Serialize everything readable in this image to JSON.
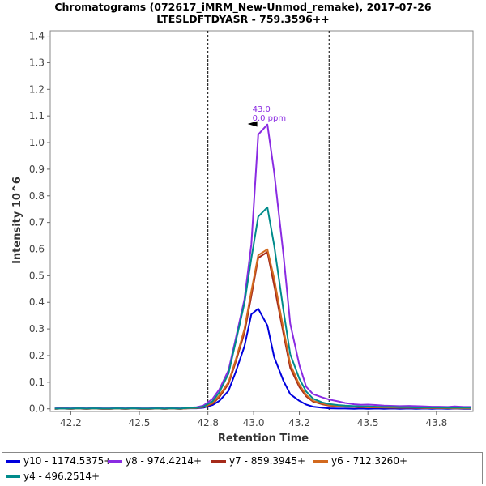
{
  "chart_data": {
    "type": "line",
    "title": "Chromatograms (072617_iMRM_New-Unmod_remake), 2017-07-26",
    "subtitle": "LTESLDFTDYASR - 759.3596++",
    "xlabel": "Retention Time",
    "ylabel": "Intensity 10^6",
    "xlim": [
      42.11,
      43.96
    ],
    "ylim": [
      -0.01,
      1.42
    ],
    "x_ticks": [
      42.2,
      42.5,
      42.8,
      43.0,
      43.2,
      43.5,
      43.8
    ],
    "x_tick_labels": [
      "42.2",
      "42.5",
      "42.8",
      "43.0",
      "43.2",
      "43.5",
      "43.8"
    ],
    "y_ticks": [
      0.0,
      0.1,
      0.2,
      0.3,
      0.4,
      0.5,
      0.6,
      0.7,
      0.8,
      0.9,
      1.0,
      1.1,
      1.2,
      1.3,
      1.4
    ],
    "y_tick_labels": [
      "0.0",
      "0.1",
      "0.2",
      "0.3",
      "0.4",
      "0.5",
      "0.6",
      "0.7",
      "0.8",
      "0.9",
      "1.0",
      "1.1",
      "1.2",
      "1.3",
      "1.4"
    ],
    "integration_boundaries": [
      42.8,
      43.33
    ],
    "x": [
      42.13,
      42.16,
      42.2,
      42.23,
      42.27,
      42.3,
      42.34,
      42.37,
      42.4,
      42.44,
      42.47,
      42.51,
      42.54,
      42.58,
      42.61,
      42.64,
      42.68,
      42.71,
      42.75,
      42.78,
      42.82,
      42.85,
      42.89,
      42.92,
      42.96,
      42.99,
      43.02,
      43.06,
      43.09,
      43.13,
      43.16,
      43.2,
      43.23,
      43.26,
      43.3,
      43.33,
      43.37,
      43.4,
      43.44,
      43.47,
      43.5,
      43.54,
      43.57,
      43.61,
      43.64,
      43.68,
      43.71,
      43.75,
      43.78,
      43.81,
      43.85,
      43.88,
      43.92,
      43.95
    ],
    "series": [
      {
        "name": "y10 - 1174.5375+",
        "color": "#0000dd",
        "values": [
          0.0,
          0.001,
          0.0,
          0.001,
          0.0,
          0.001,
          0.0,
          0.0,
          0.001,
          0.0,
          0.001,
          0.0,
          0.0,
          0.001,
          0.0,
          0.001,
          0.0,
          0.002,
          0.002,
          0.004,
          0.014,
          0.03,
          0.068,
          0.135,
          0.235,
          0.355,
          0.376,
          0.313,
          0.194,
          0.106,
          0.055,
          0.03,
          0.016,
          0.008,
          0.004,
          0.002,
          0.001,
          0.001,
          0.0,
          0.001,
          0.0,
          0.001,
          0.0,
          0.001,
          0.0,
          0.001,
          0.0,
          0.001,
          0.0,
          0.001,
          0.0,
          0.001,
          0.0,
          0.0
        ]
      },
      {
        "name": "y8 - 974.4214+",
        "color": "#8a2be2",
        "values": [
          0.002,
          0.003,
          0.002,
          0.003,
          0.002,
          0.003,
          0.002,
          0.002,
          0.003,
          0.002,
          0.003,
          0.002,
          0.002,
          0.003,
          0.002,
          0.003,
          0.002,
          0.004,
          0.006,
          0.012,
          0.037,
          0.073,
          0.145,
          0.258,
          0.412,
          0.618,
          1.03,
          1.068,
          0.888,
          0.583,
          0.32,
          0.164,
          0.083,
          0.055,
          0.043,
          0.035,
          0.028,
          0.022,
          0.017,
          0.015,
          0.016,
          0.014,
          0.012,
          0.011,
          0.01,
          0.011,
          0.01,
          0.009,
          0.008,
          0.008,
          0.007,
          0.009,
          0.007,
          0.007
        ]
      },
      {
        "name": "y7 - 859.3945+",
        "color": "#a52a1a",
        "values": [
          0.0,
          0.001,
          0.0,
          0.001,
          0.0,
          0.001,
          0.0,
          0.0,
          0.001,
          0.0,
          0.001,
          0.0,
          0.0,
          0.001,
          0.0,
          0.001,
          0.0,
          0.002,
          0.003,
          0.006,
          0.019,
          0.044,
          0.094,
          0.172,
          0.286,
          0.424,
          0.567,
          0.589,
          0.463,
          0.285,
          0.154,
          0.082,
          0.047,
          0.027,
          0.017,
          0.012,
          0.01,
          0.008,
          0.007,
          0.006,
          0.006,
          0.005,
          0.005,
          0.004,
          0.004,
          0.004,
          0.003,
          0.003,
          0.003,
          0.003,
          0.002,
          0.002,
          0.002,
          0.002
        ]
      },
      {
        "name": "y6 - 712.3260+",
        "color": "#d2691e",
        "values": [
          0.0,
          0.001,
          0.0,
          0.001,
          0.0,
          0.001,
          0.0,
          0.0,
          0.001,
          0.0,
          0.001,
          0.0,
          0.0,
          0.001,
          0.0,
          0.001,
          0.0,
          0.002,
          0.003,
          0.007,
          0.022,
          0.05,
          0.1,
          0.18,
          0.3,
          0.442,
          0.577,
          0.599,
          0.489,
          0.302,
          0.168,
          0.09,
          0.052,
          0.03,
          0.02,
          0.014,
          0.011,
          0.009,
          0.008,
          0.007,
          0.006,
          0.006,
          0.005,
          0.005,
          0.004,
          0.004,
          0.004,
          0.003,
          0.003,
          0.003,
          0.003,
          0.002,
          0.002,
          0.002
        ]
      },
      {
        "name": "y4 - 496.2514+",
        "color": "#008b8b",
        "values": [
          0.001,
          0.001,
          0.001,
          0.002,
          0.001,
          0.002,
          0.001,
          0.001,
          0.002,
          0.001,
          0.002,
          0.001,
          0.001,
          0.002,
          0.001,
          0.002,
          0.001,
          0.003,
          0.004,
          0.008,
          0.028,
          0.062,
          0.132,
          0.246,
          0.397,
          0.565,
          0.722,
          0.757,
          0.613,
          0.372,
          0.205,
          0.113,
          0.065,
          0.038,
          0.024,
          0.018,
          0.014,
          0.012,
          0.01,
          0.009,
          0.009,
          0.008,
          0.007,
          0.007,
          0.006,
          0.006,
          0.005,
          0.005,
          0.005,
          0.005,
          0.004,
          0.004,
          0.004,
          0.004
        ]
      }
    ],
    "annotation": {
      "label_rt": "43.0",
      "label_ppm": "0.0 ppm",
      "x": 43.03,
      "y": 1.07,
      "color": "#8a2be2",
      "marker": "left-pointing triangle"
    },
    "legend": {
      "position": "bottom",
      "entries": [
        "y10 - 1174.5375+",
        "y8 - 974.4214+",
        "y7 - 859.3945+",
        "y6 - 712.3260+",
        "y4 - 496.2514+"
      ]
    }
  }
}
